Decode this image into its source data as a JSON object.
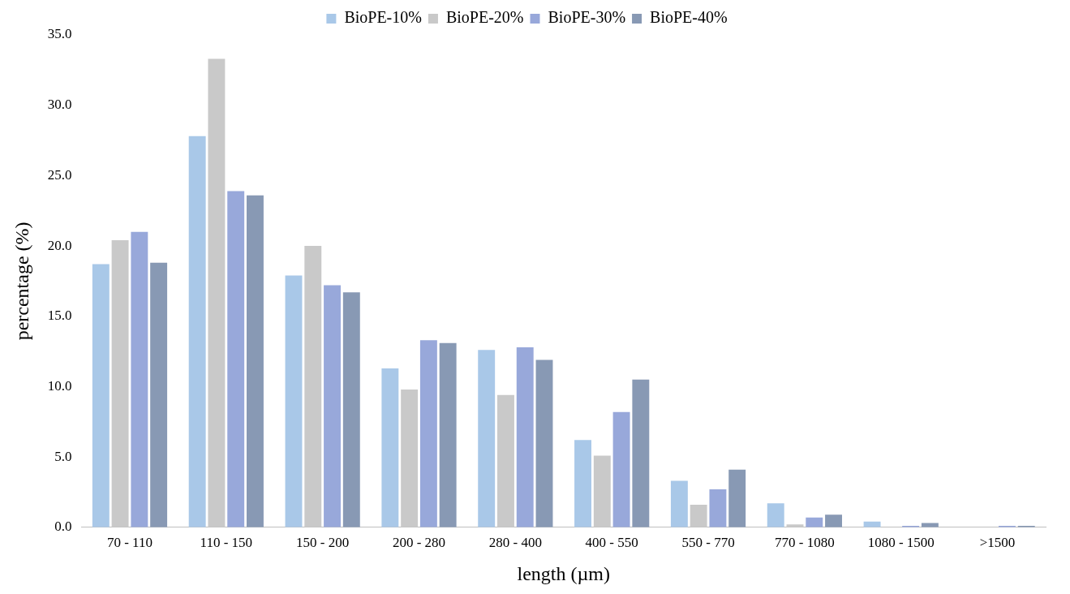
{
  "chart_data": {
    "type": "bar",
    "xlabel": "length (µm)",
    "ylabel": "percentage (%)",
    "categories": [
      "70 - 110",
      "110 - 150",
      "150 - 200",
      "200 - 280",
      "280 - 400",
      "400 - 550",
      "550 - 770",
      "770 - 1080",
      "1080 - 1500",
      ">1500"
    ],
    "series": [
      {
        "name": "BioPE-10%",
        "color": "#a9c8e8",
        "values": [
          18.7,
          27.8,
          17.9,
          11.3,
          12.6,
          6.2,
          3.3,
          1.7,
          0.4,
          0
        ]
      },
      {
        "name": "BioPE-20%",
        "color": "#c9c9c9",
        "values": [
          20.4,
          33.3,
          20.0,
          9.8,
          9.4,
          5.1,
          1.6,
          0.2,
          0,
          0
        ]
      },
      {
        "name": "BioPE-30%",
        "color": "#98a8da",
        "values": [
          21.0,
          23.9,
          17.2,
          13.3,
          12.8,
          8.2,
          2.7,
          0.7,
          0.1,
          0.1
        ]
      },
      {
        "name": "BioPE-40%",
        "color": "#8899b4",
        "values": [
          18.8,
          23.6,
          16.7,
          13.1,
          11.9,
          10.5,
          4.1,
          0.9,
          0.3,
          0.1
        ]
      }
    ],
    "ylim": [
      0,
      35
    ],
    "yticks": [
      {
        "value": 0,
        "label": "0.0"
      },
      {
        "value": 5,
        "label": "5.0"
      },
      {
        "value": 10,
        "label": "10.0"
      },
      {
        "value": 15,
        "label": "15.0"
      },
      {
        "value": 20,
        "label": "20.0"
      },
      {
        "value": 25,
        "label": "25.0"
      },
      {
        "value": 30,
        "label": "30.0"
      },
      {
        "value": 35,
        "label": "35.0"
      }
    ],
    "grid": false,
    "legend": "top"
  }
}
